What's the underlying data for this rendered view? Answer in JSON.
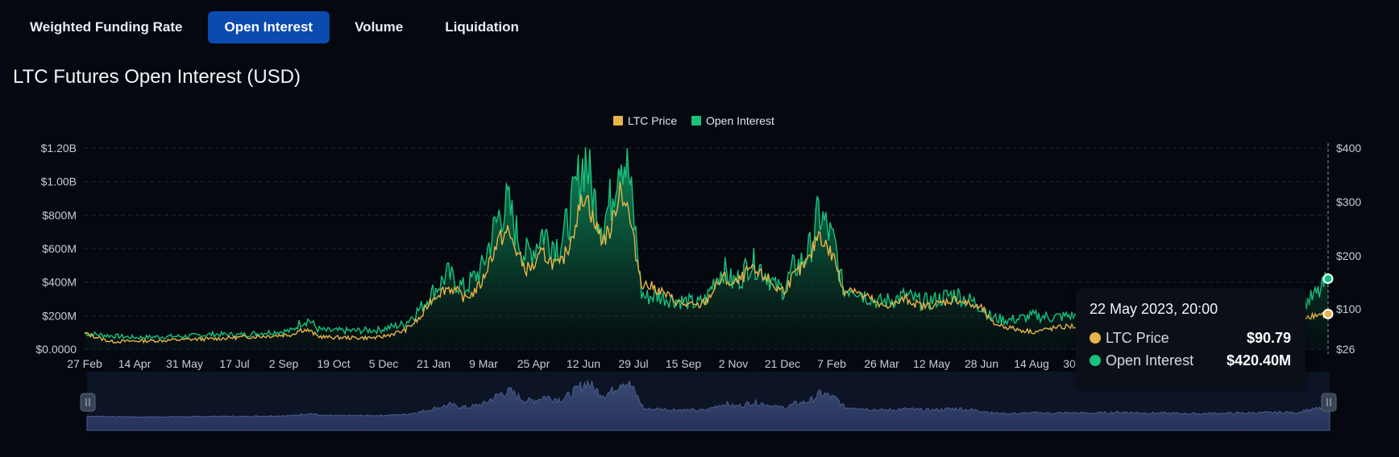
{
  "tabs": [
    {
      "label": "Weighted Funding Rate",
      "active": false
    },
    {
      "label": "Open Interest",
      "active": true
    },
    {
      "label": "Volume",
      "active": false
    },
    {
      "label": "Liquidation",
      "active": false
    }
  ],
  "page_title": "LTC Futures Open Interest (USD)",
  "colors": {
    "accent": "#0b4bb0",
    "price": "#e8b448",
    "open_interest": "#17c27d",
    "grid": "#1f2633",
    "axis_text": "#c7ccd6"
  },
  "tooltip": {
    "date": "22 May 2023, 20:00",
    "rows": [
      {
        "name": "LTC Price",
        "value": "$90.79",
        "color": "#e8b448"
      },
      {
        "name": "Open Interest",
        "value": "$420.40M",
        "color": "#17c27d"
      }
    ]
  },
  "chart_data": {
    "type": "area",
    "legend": {
      "placement": "top-center",
      "items": [
        "LTC Price",
        "Open Interest"
      ]
    },
    "x_tick_labels": [
      "27 Feb",
      "14 Apr",
      "31 May",
      "17 Jul",
      "2 Sep",
      "19 Oct",
      "5 Dec",
      "21 Jan",
      "9 Mar",
      "25 Apr",
      "12 Jun",
      "29 Jul",
      "15 Sep",
      "2 Nov",
      "21 Dec",
      "7 Feb",
      "26 Mar",
      "12 May",
      "28 Jun",
      "14 Aug",
      "30"
    ],
    "y_left": {
      "ticks": [
        "$0.0000",
        "$200M",
        "$400M",
        "$600M",
        "$800M",
        "$1.00B",
        "$1.20B"
      ],
      "tick_values": [
        0,
        200,
        400,
        600,
        800,
        1000,
        1200
      ],
      "range": [
        0,
        1200
      ],
      "unit": "USD millions"
    },
    "y_right": {
      "ticks": [
        "$26",
        "$100",
        "$200",
        "$300",
        "$400"
      ],
      "tick_values": [
        26,
        100,
        200,
        300,
        400
      ],
      "range": [
        26,
        400
      ]
    },
    "grid": true,
    "navigator": true,
    "series": [
      {
        "name": "Open Interest",
        "kind": "area",
        "points": [
          [
            0,
            95
          ],
          [
            3,
            80
          ],
          [
            6,
            70
          ],
          [
            9,
            75
          ],
          [
            12,
            78
          ],
          [
            15,
            90
          ],
          [
            18,
            85
          ],
          [
            21,
            100
          ],
          [
            24,
            110
          ],
          [
            25,
            160
          ],
          [
            26,
            175
          ],
          [
            27,
            120
          ],
          [
            28,
            110
          ],
          [
            31,
            110
          ],
          [
            34,
            115
          ],
          [
            37,
            150
          ],
          [
            39,
            250
          ],
          [
            40,
            320
          ],
          [
            41,
            380
          ],
          [
            42,
            450
          ],
          [
            43,
            400
          ],
          [
            44,
            360
          ],
          [
            45,
            420
          ],
          [
            46,
            480
          ],
          [
            47,
            650
          ],
          [
            48,
            800
          ],
          [
            49,
            870
          ],
          [
            50,
            700
          ],
          [
            51,
            560
          ],
          [
            52,
            600
          ],
          [
            53,
            700
          ],
          [
            54,
            650
          ],
          [
            55,
            620
          ],
          [
            56,
            760
          ],
          [
            57,
            980
          ],
          [
            58,
            1150
          ],
          [
            59,
            900
          ],
          [
            60,
            750
          ],
          [
            61,
            900
          ],
          [
            62,
            1200
          ],
          [
            63,
            1050
          ],
          [
            64,
            600
          ],
          [
            64.5,
            330
          ],
          [
            65,
            310
          ],
          [
            66,
            320
          ],
          [
            68,
            300
          ],
          [
            69,
            290
          ],
          [
            71,
            270
          ],
          [
            72,
            300
          ],
          [
            73,
            420
          ],
          [
            74,
            480
          ],
          [
            75,
            400
          ],
          [
            76,
            430
          ],
          [
            77,
            520
          ],
          [
            78,
            500
          ],
          [
            79,
            450
          ],
          [
            80,
            370
          ],
          [
            81,
            360
          ],
          [
            82,
            480
          ],
          [
            83,
            520
          ],
          [
            84,
            600
          ],
          [
            85,
            810
          ],
          [
            86,
            720
          ],
          [
            87,
            600
          ],
          [
            87.5,
            430
          ],
          [
            88,
            350
          ],
          [
            89,
            380
          ],
          [
            90,
            330
          ],
          [
            91,
            310
          ],
          [
            92,
            280
          ],
          [
            94,
            300
          ],
          [
            95,
            320
          ],
          [
            96,
            300
          ],
          [
            97,
            280
          ],
          [
            99,
            300
          ],
          [
            100,
            320
          ],
          [
            101,
            330
          ],
          [
            102,
            300
          ],
          [
            103,
            280
          ],
          [
            104,
            250
          ],
          [
            105,
            190
          ],
          [
            106,
            180
          ],
          [
            107,
            175
          ],
          [
            108,
            180
          ],
          [
            110,
            200
          ],
          [
            112,
            190
          ],
          [
            114,
            200
          ],
          [
            116,
            190
          ],
          [
            118,
            195
          ],
          [
            120,
            220
          ],
          [
            122,
            200
          ],
          [
            124,
            190
          ],
          [
            126,
            185
          ],
          [
            127,
            180
          ],
          [
            128,
            175
          ],
          [
            130,
            180
          ],
          [
            132,
            185
          ],
          [
            134,
            190
          ],
          [
            136,
            200
          ],
          [
            138,
            210
          ],
          [
            139,
            220
          ],
          [
            140,
            190
          ],
          [
            141,
            270
          ],
          [
            142,
            300
          ],
          [
            143,
            340
          ],
          [
            144,
            420.4
          ]
        ]
      },
      {
        "name": "LTC Price",
        "kind": "line",
        "points": [
          [
            0,
            55
          ],
          [
            3,
            40
          ],
          [
            6,
            41
          ],
          [
            9,
            42
          ],
          [
            12,
            44
          ],
          [
            15,
            45
          ],
          [
            18,
            48
          ],
          [
            21,
            50
          ],
          [
            24,
            53
          ],
          [
            25,
            62
          ],
          [
            26,
            60
          ],
          [
            27,
            50
          ],
          [
            28,
            48
          ],
          [
            31,
            47
          ],
          [
            34,
            47
          ],
          [
            37,
            60
          ],
          [
            39,
            85
          ],
          [
            40,
            115
          ],
          [
            41,
            130
          ],
          [
            42,
            140
          ],
          [
            43,
            135
          ],
          [
            44,
            120
          ],
          [
            45,
            130
          ],
          [
            46,
            150
          ],
          [
            47,
            195
          ],
          [
            48,
            230
          ],
          [
            49,
            245
          ],
          [
            50,
            210
          ],
          [
            51,
            175
          ],
          [
            52,
            180
          ],
          [
            53,
            205
          ],
          [
            54,
            190
          ],
          [
            55,
            180
          ],
          [
            56,
            215
          ],
          [
            57,
            270
          ],
          [
            58,
            320
          ],
          [
            59,
            260
          ],
          [
            60,
            230
          ],
          [
            61,
            250
          ],
          [
            62,
            330
          ],
          [
            63,
            280
          ],
          [
            64,
            190
          ],
          [
            64.5,
            150
          ],
          [
            65,
            145
          ],
          [
            66,
            140
          ],
          [
            68,
            120
          ],
          [
            69,
            110
          ],
          [
            71,
            105
          ],
          [
            72,
            115
          ],
          [
            73,
            140
          ],
          [
            74,
            160
          ],
          [
            75,
            145
          ],
          [
            76,
            155
          ],
          [
            77,
            175
          ],
          [
            78,
            165
          ],
          [
            79,
            160
          ],
          [
            80,
            140
          ],
          [
            81,
            135
          ],
          [
            82,
            160
          ],
          [
            83,
            175
          ],
          [
            84,
            195
          ],
          [
            85,
            245
          ],
          [
            86,
            215
          ],
          [
            87,
            190
          ],
          [
            87.5,
            150
          ],
          [
            88,
            135
          ],
          [
            89,
            140
          ],
          [
            90,
            125
          ],
          [
            91,
            120
          ],
          [
            92,
            105
          ],
          [
            94,
            110
          ],
          [
            95,
            120
          ],
          [
            96,
            112
          ],
          [
            97,
            105
          ],
          [
            99,
            110
          ],
          [
            100,
            115
          ],
          [
            101,
            118
          ],
          [
            102,
            112
          ],
          [
            103,
            105
          ],
          [
            104,
            100
          ],
          [
            105,
            75
          ],
          [
            106,
            70
          ],
          [
            107,
            66
          ],
          [
            108,
            62
          ],
          [
            110,
            58
          ],
          [
            112,
            64
          ],
          [
            114,
            68
          ],
          [
            116,
            67
          ],
          [
            118,
            65
          ],
          [
            120,
            66
          ],
          [
            122,
            64
          ],
          [
            124,
            63
          ],
          [
            126,
            61
          ],
          [
            127,
            60
          ],
          [
            128,
            58
          ],
          [
            130,
            60
          ],
          [
            132,
            62
          ],
          [
            134,
            65
          ],
          [
            136,
            70
          ],
          [
            138,
            76
          ],
          [
            139,
            82
          ],
          [
            140,
            88
          ],
          [
            141,
            85
          ],
          [
            142,
            88
          ],
          [
            143,
            90
          ],
          [
            144,
            90.79
          ]
        ]
      }
    ]
  }
}
